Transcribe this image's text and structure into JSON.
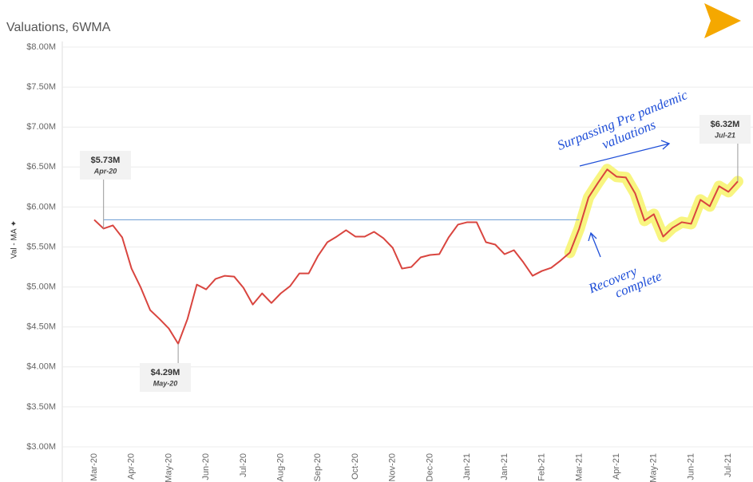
{
  "chart_data": {
    "type": "line",
    "title": "Valuations, 6WMA",
    "y_label": "Val - MA ✦",
    "categories": [
      "Mar-20",
      null,
      null,
      null,
      "Apr-20",
      null,
      null,
      null,
      "May-20",
      null,
      null,
      null,
      "Jun-20",
      null,
      null,
      null,
      "Jul-20",
      null,
      null,
      null,
      "Aug-20",
      null,
      null,
      null,
      "Sep-20",
      null,
      null,
      null,
      "Oct-20",
      null,
      null,
      null,
      "Nov-20",
      null,
      null,
      null,
      "Dec-20",
      null,
      null,
      null,
      "Jan-21",
      null,
      null,
      null,
      "Jan-21",
      null,
      null,
      null,
      "Feb-21",
      null,
      null,
      null,
      "Mar-21",
      null,
      null,
      null,
      "Apr-21",
      null,
      null,
      null,
      "May-21",
      null,
      null,
      null,
      "Jun-21",
      null,
      null,
      null,
      "Jul-21",
      null
    ],
    "series": [
      {
        "name": "Val - MA",
        "color": "#d9453f",
        "values": [
          5.84,
          5.73,
          5.77,
          5.62,
          5.23,
          4.99,
          4.71,
          4.6,
          4.48,
          4.29,
          4.6,
          5.03,
          4.97,
          5.1,
          5.14,
          5.13,
          4.99,
          4.78,
          4.92,
          4.8,
          4.92,
          5.01,
          5.17,
          5.17,
          5.39,
          5.56,
          5.63,
          5.71,
          5.63,
          5.63,
          5.69,
          5.61,
          5.49,
          5.23,
          5.25,
          5.37,
          5.4,
          5.41,
          5.62,
          5.78,
          5.81,
          5.81,
          5.56,
          5.53,
          5.41,
          5.46,
          5.31,
          5.14,
          5.2,
          5.24,
          5.33,
          5.43,
          5.73,
          6.12,
          6.3,
          6.47,
          6.38,
          6.37,
          6.17,
          5.83,
          5.91,
          5.63,
          5.74,
          5.81,
          5.79,
          6.09,
          6.01,
          6.26,
          6.19,
          6.32
        ],
        "value_labels": [
          null,
          "$5.73M",
          null,
          null,
          null,
          null,
          null,
          null,
          null,
          "$4.29M",
          null,
          null,
          null,
          null,
          null,
          null,
          null,
          null,
          null,
          null,
          null,
          null,
          null,
          null,
          null,
          null,
          null,
          null,
          null,
          null,
          null,
          null,
          null,
          null,
          null,
          null,
          null,
          null,
          null,
          null,
          null,
          null,
          null,
          null,
          null,
          null,
          null,
          null,
          null,
          null,
          null,
          null,
          null,
          null,
          null,
          null,
          null,
          null,
          null,
          null,
          null,
          null,
          null,
          null,
          null,
          null,
          null,
          null,
          null,
          "$6.32M"
        ],
        "label_dates": [
          null,
          "Apr-20",
          null,
          null,
          null,
          null,
          null,
          null,
          null,
          "May-20",
          null,
          null,
          null,
          null,
          null,
          null,
          null,
          null,
          null,
          null,
          null,
          null,
          null,
          null,
          null,
          null,
          null,
          null,
          null,
          null,
          null,
          null,
          null,
          null,
          null,
          null,
          null,
          null,
          null,
          null,
          null,
          null,
          null,
          null,
          null,
          null,
          null,
          null,
          null,
          null,
          null,
          null,
          null,
          null,
          null,
          null,
          null,
          null,
          null,
          null,
          null,
          null,
          null,
          null,
          null,
          null,
          null,
          null,
          null,
          "Jul-21"
        ]
      }
    ],
    "reference_value": 5.84,
    "ylim": [
      3,
      8
    ],
    "yticks": [
      {
        "value": 3,
        "label": "$3.00M"
      },
      {
        "value": 3.5,
        "label": "$3.50M"
      },
      {
        "value": 4,
        "label": "$4.00M"
      },
      {
        "value": 4.5,
        "label": "$4.50M"
      },
      {
        "value": 5,
        "label": "$5.00M"
      },
      {
        "value": 5.5,
        "label": "$5.50M"
      },
      {
        "value": 6,
        "label": "$6.00M"
      },
      {
        "value": 6.5,
        "label": "$6.50M"
      },
      {
        "value": 7,
        "label": "$7.00M"
      },
      {
        "value": 7.5,
        "label": "$7.50M"
      },
      {
        "value": 8,
        "label": "$8.00M"
      }
    ],
    "grid": true,
    "annotations": [
      {
        "lines": [
          "Surpassing Pre pandemic",
          "valuations"
        ]
      },
      {
        "lines": [
          "Recovery",
          "complete"
        ]
      }
    ]
  }
}
